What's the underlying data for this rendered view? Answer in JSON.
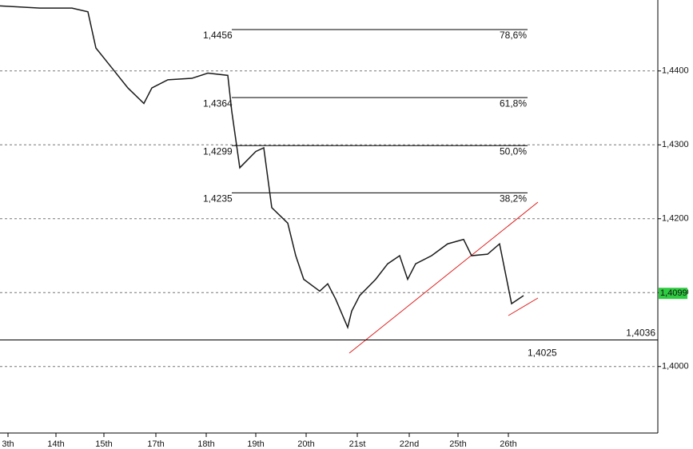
{
  "chart_data": {
    "type": "line",
    "x": [
      0,
      5,
      9,
      11,
      12,
      14,
      16,
      18,
      19,
      21,
      24,
      26,
      28.5,
      29,
      30,
      32,
      33,
      34,
      36,
      37,
      38,
      40,
      41,
      42,
      43.5,
      44,
      45,
      47,
      48.5,
      50,
      51,
      52,
      54,
      56,
      58,
      59,
      61,
      62.5,
      63.5,
      64,
      65.5
    ],
    "series": [
      {
        "color": "#1a1a1a",
        "values": [
          1.4488,
          1.4485,
          1.4485,
          1.448,
          1.4431,
          1.4404,
          1.4377,
          1.4356,
          1.4377,
          1.4388,
          1.439,
          1.4397,
          1.4394,
          1.4345,
          1.4269,
          1.4291,
          1.4296,
          1.4215,
          1.4194,
          1.415,
          1.4118,
          1.4102,
          1.4112,
          1.4091,
          1.4053,
          1.4075,
          1.4096,
          1.4118,
          1.4139,
          1.415,
          1.4118,
          1.4139,
          1.415,
          1.4166,
          1.4172,
          1.415,
          1.4152,
          1.4166,
          1.4112,
          1.4085,
          1.4096
        ]
      }
    ],
    "xlim": [
      0,
      82.3
    ],
    "xticks": [
      {
        "value": 1,
        "label": "3th"
      },
      {
        "value": 7,
        "label": "14th"
      },
      {
        "value": 13,
        "label": "15th"
      },
      {
        "value": 19.5,
        "label": "17th"
      },
      {
        "value": 25.8,
        "label": "18th"
      },
      {
        "value": 32,
        "label": "19th"
      },
      {
        "value": 38.3,
        "label": "20th"
      },
      {
        "value": 44.7,
        "label": "21st"
      },
      {
        "value": 51.2,
        "label": "22nd"
      },
      {
        "value": 57.3,
        "label": "25th"
      },
      {
        "value": 63.6,
        "label": "26th"
      }
    ],
    "ylim": [
      1.391,
      1.4496
    ],
    "yticks": [
      {
        "value": 1.4,
        "label": "1,4000"
      },
      {
        "value": 1.41,
        "label": "1,4100"
      },
      {
        "value": 1.42,
        "label": "1,4200"
      },
      {
        "value": 1.43,
        "label": "1,4300"
      },
      {
        "value": 1.44,
        "label": "1,4400"
      }
    ],
    "grid": true,
    "fib_levels": [
      {
        "value": 1.4456,
        "label": "1,4456",
        "pct": "78,6%"
      },
      {
        "value": 1.4364,
        "label": "1,4364",
        "pct": "61,8%"
      },
      {
        "value": 1.4299,
        "label": "1,4299",
        "pct": "50,0%"
      },
      {
        "value": 1.4235,
        "label": "1,4235",
        "pct": "38,2%"
      }
    ],
    "support": {
      "value": 1.4036,
      "label": "1,4036"
    },
    "annotation": {
      "value": 1.4025,
      "label": "1,4025"
    },
    "last_price": {
      "value": 1.4099,
      "label": "1,4099",
      "color": "#2ecc40"
    }
  }
}
